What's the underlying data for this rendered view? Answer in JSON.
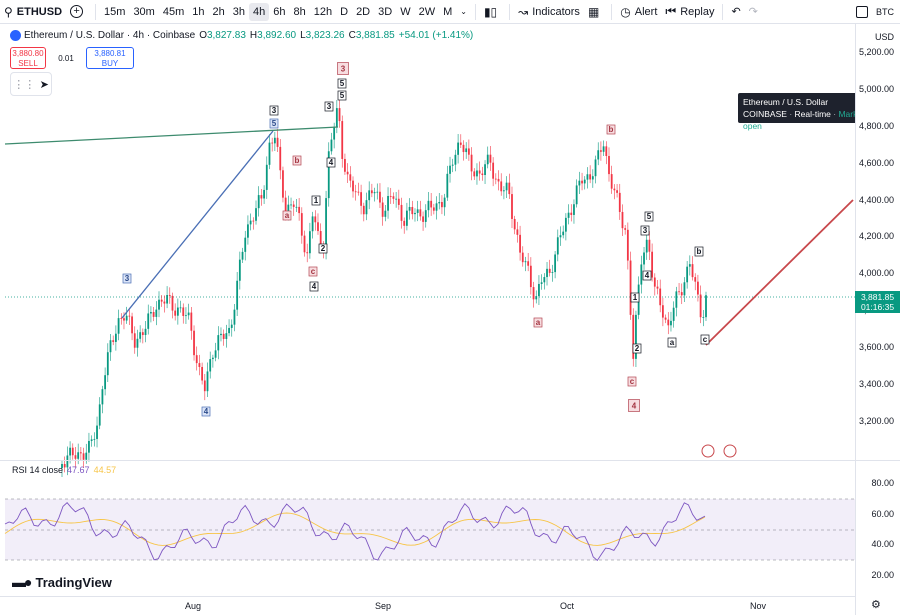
{
  "toolbar": {
    "symbol": "ETHUSD",
    "intervals": [
      "15m",
      "30m",
      "45m",
      "1h",
      "2h",
      "3h",
      "4h",
      "6h",
      "8h",
      "12h",
      "D",
      "2D",
      "3D",
      "W",
      "2W",
      "M"
    ],
    "active_interval": "4h",
    "indicators_label": "Indicators",
    "alert_label": "Alert",
    "replay_label": "Replay",
    "right_label": "BTC"
  },
  "legend": {
    "title": "Ethereum / U.S. Dollar · 4h · Coinbase",
    "open_k": "O",
    "open": "3,827.83",
    "high_k": "H",
    "high": "3,892.60",
    "low_k": "L",
    "low": "3,823.26",
    "close_k": "C",
    "close": "3,881.85",
    "change": "+54.01 (+1.41%)"
  },
  "trade": {
    "sell_price": "3,880.80",
    "sell_label": "SELL",
    "spread": "0.01",
    "buy_price": "3,880.81",
    "buy_label": "BUY"
  },
  "tooltip": {
    "line1": "Ethereum / U.S. Dollar",
    "exchange": "COINBASE",
    "feed": "Real-time",
    "status": "Market open"
  },
  "price_scale": {
    "currency": "USD",
    "labels": [
      "5,200.00",
      "5,000.00",
      "4,800.00",
      "4,600.00",
      "4,400.00",
      "4,200.00",
      "4,000.00",
      "3,800.00",
      "3,600.00",
      "3,400.00",
      "3,200.00"
    ],
    "current_price": "3,881.85",
    "countdown": "01:16:35"
  },
  "rsi": {
    "label": "RSI 14 close",
    "value": "47.67",
    "ma_value": "44.57",
    "scale": [
      "80.00",
      "60.00",
      "40.00",
      "20.00"
    ]
  },
  "time_axis": {
    "labels": [
      "Aug",
      "Sep",
      "Oct",
      "Nov"
    ]
  },
  "logo": {
    "text": "TradingView"
  },
  "colors": {
    "up": "#089981",
    "down": "#f23645",
    "rsi": "#7e57c2",
    "rsi_ma": "#f7c548",
    "trend_green": "#3d8b6e",
    "trend_blue": "#4a6fb5",
    "trend_red": "#c8484c"
  },
  "wave_labels": [
    {
      "t": "3",
      "c": "blue"
    },
    {
      "t": "4",
      "c": "blue"
    },
    {
      "t": "3",
      "c": "dark"
    },
    {
      "t": "5",
      "c": "blue"
    },
    {
      "t": "b",
      "c": "red"
    },
    {
      "t": "a",
      "c": "red"
    },
    {
      "t": "c",
      "c": "red"
    },
    {
      "t": "4",
      "c": "dark"
    },
    {
      "t": "1",
      "c": "dark"
    },
    {
      "t": "2",
      "c": "dark"
    },
    {
      "t": "3",
      "c": "dark"
    },
    {
      "t": "4",
      "c": "dark"
    },
    {
      "t": "3",
      "c": "red"
    },
    {
      "t": "5",
      "c": "dark"
    },
    {
      "t": "5",
      "c": "dark"
    },
    {
      "t": "a",
      "c": "red"
    },
    {
      "t": "b",
      "c": "red"
    },
    {
      "t": "c",
      "c": "red"
    },
    {
      "t": "4",
      "c": "red"
    },
    {
      "t": "1",
      "c": "dark"
    },
    {
      "t": "2",
      "c": "dark"
    },
    {
      "t": "3",
      "c": "dark"
    },
    {
      "t": "4",
      "c": "dark"
    },
    {
      "t": "5",
      "c": "dark"
    },
    {
      "t": "a",
      "c": "dark"
    },
    {
      "t": "b",
      "c": "dark"
    },
    {
      "t": "c",
      "c": "dark"
    }
  ]
}
